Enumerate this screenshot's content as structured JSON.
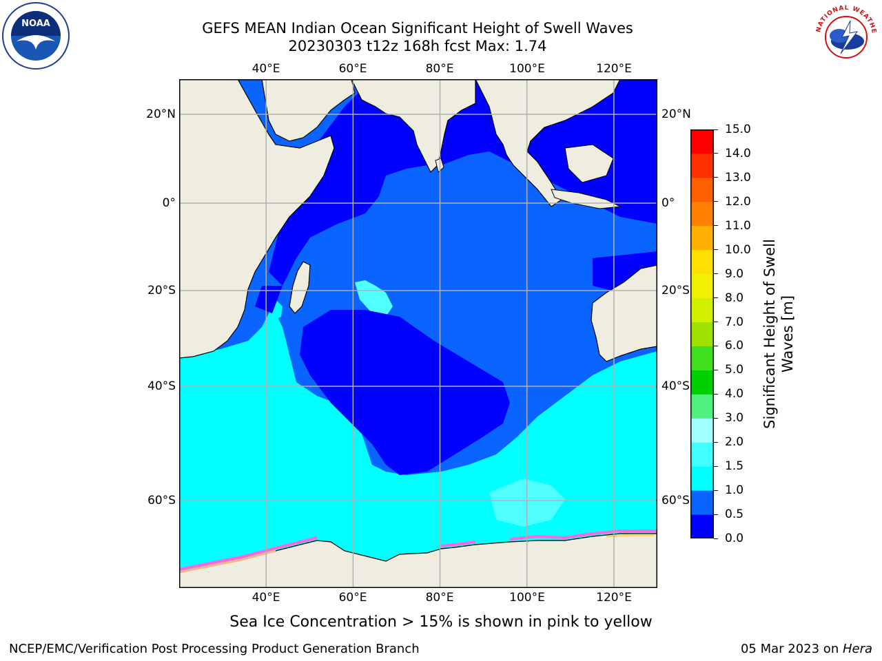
{
  "title": {
    "line1": "GEFS MEAN Indian Ocean Significant Height of Swell Waves",
    "line2": "20230303 t12z 168h fcst   Max: 1.74"
  },
  "map": {
    "lon_range": [
      20,
      130
    ],
    "lat_range": [
      -74,
      28
    ],
    "gridlines": true,
    "lon_ticks": [
      "40°E",
      "60°E",
      "80°E",
      "100°E",
      "120°E"
    ],
    "lat_ticks": [
      "20°N",
      "0°",
      "20°S",
      "40°S",
      "60°S"
    ]
  },
  "colorbar": {
    "label_line1": "Significant Height of Swell",
    "label_line2": "Waves [m]",
    "ticks": [
      "0.0",
      "0.5",
      "1.0",
      "1.5",
      "2.0",
      "3.0",
      "4.0",
      "5.0",
      "6.0",
      "7.0",
      "8.0",
      "9.0",
      "10.0",
      "11.0",
      "12.0",
      "13.0",
      "14.0",
      "15.0"
    ],
    "colors": [
      "#0000ff",
      "#0a64ff",
      "#00ffff",
      "#40ffff",
      "#a0ffff",
      "#50f080",
      "#00d000",
      "#40e020",
      "#a0e000",
      "#d0f000",
      "#f0f000",
      "#ffe000",
      "#ffb000",
      "#ff8000",
      "#ff6000",
      "#ff3000",
      "#ff0000"
    ]
  },
  "colors": {
    "land": "#eeeddf",
    "level_0": "#0000ff",
    "level_05": "#0a64ff",
    "level_10": "#00ffff",
    "level_15": "#50ffff",
    "grid": "#b0b0b0"
  },
  "caption": "Sea Ice Concentration > 15% is shown in pink to yellow",
  "footer": {
    "left": "NCEP/EMC/Verification Post Processing Product Generation Branch",
    "right_date": "05 Mar 2023 on ",
    "right_host": "Hera"
  },
  "logos": {
    "noaa": "NOAA",
    "nws": "NATIONAL WEATHER SERVICE"
  }
}
